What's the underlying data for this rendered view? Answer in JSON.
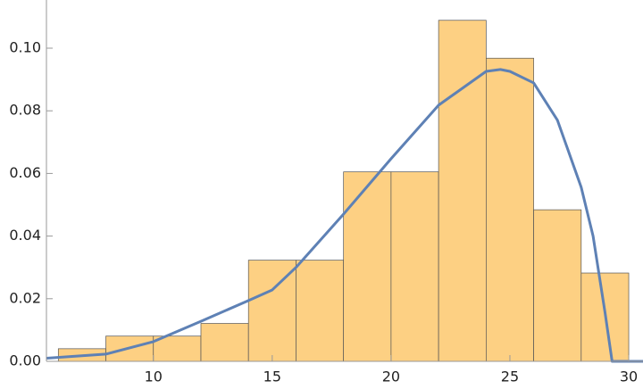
{
  "chart_data": {
    "type": "histogram",
    "bins": [
      6,
      8,
      10,
      12,
      14,
      16,
      18,
      20,
      22,
      24,
      26,
      28,
      30
    ],
    "values": [
      0.00403,
      0.00806,
      0.00806,
      0.0121,
      0.0323,
      0.0323,
      0.0605,
      0.0605,
      0.1089,
      0.0968,
      0.0484,
      0.0282
    ],
    "color": "#fdd083",
    "curve": {
      "color": "#5e81b5",
      "x": [
        5.5,
        8,
        10,
        12,
        14,
        15,
        16,
        18,
        20,
        22,
        24,
        24.6,
        25,
        26,
        27,
        28,
        28.5,
        29,
        29.3,
        30.6
      ],
      "values": [
        0.001,
        0.0023,
        0.0063,
        0.0128,
        0.0194,
        0.0228,
        0.03,
        0.047,
        0.0647,
        0.0818,
        0.0926,
        0.0932,
        0.0926,
        0.0889,
        0.077,
        0.0556,
        0.04,
        0.0157,
        0,
        0
      ]
    },
    "xlim": [
      5.5,
      30.6
    ],
    "ylim": [
      0,
      0.115
    ],
    "xticks": [
      10,
      15,
      20,
      25,
      30
    ],
    "yticks": [
      {
        "value": 0,
        "label": "0.00"
      },
      {
        "value": 0.02,
        "label": "0.02"
      },
      {
        "value": 0.04,
        "label": "0.04"
      },
      {
        "value": 0.06,
        "label": "0.06"
      },
      {
        "value": 0.08,
        "label": "0.08"
      },
      {
        "value": 0.1,
        "label": "0.10"
      }
    ]
  }
}
